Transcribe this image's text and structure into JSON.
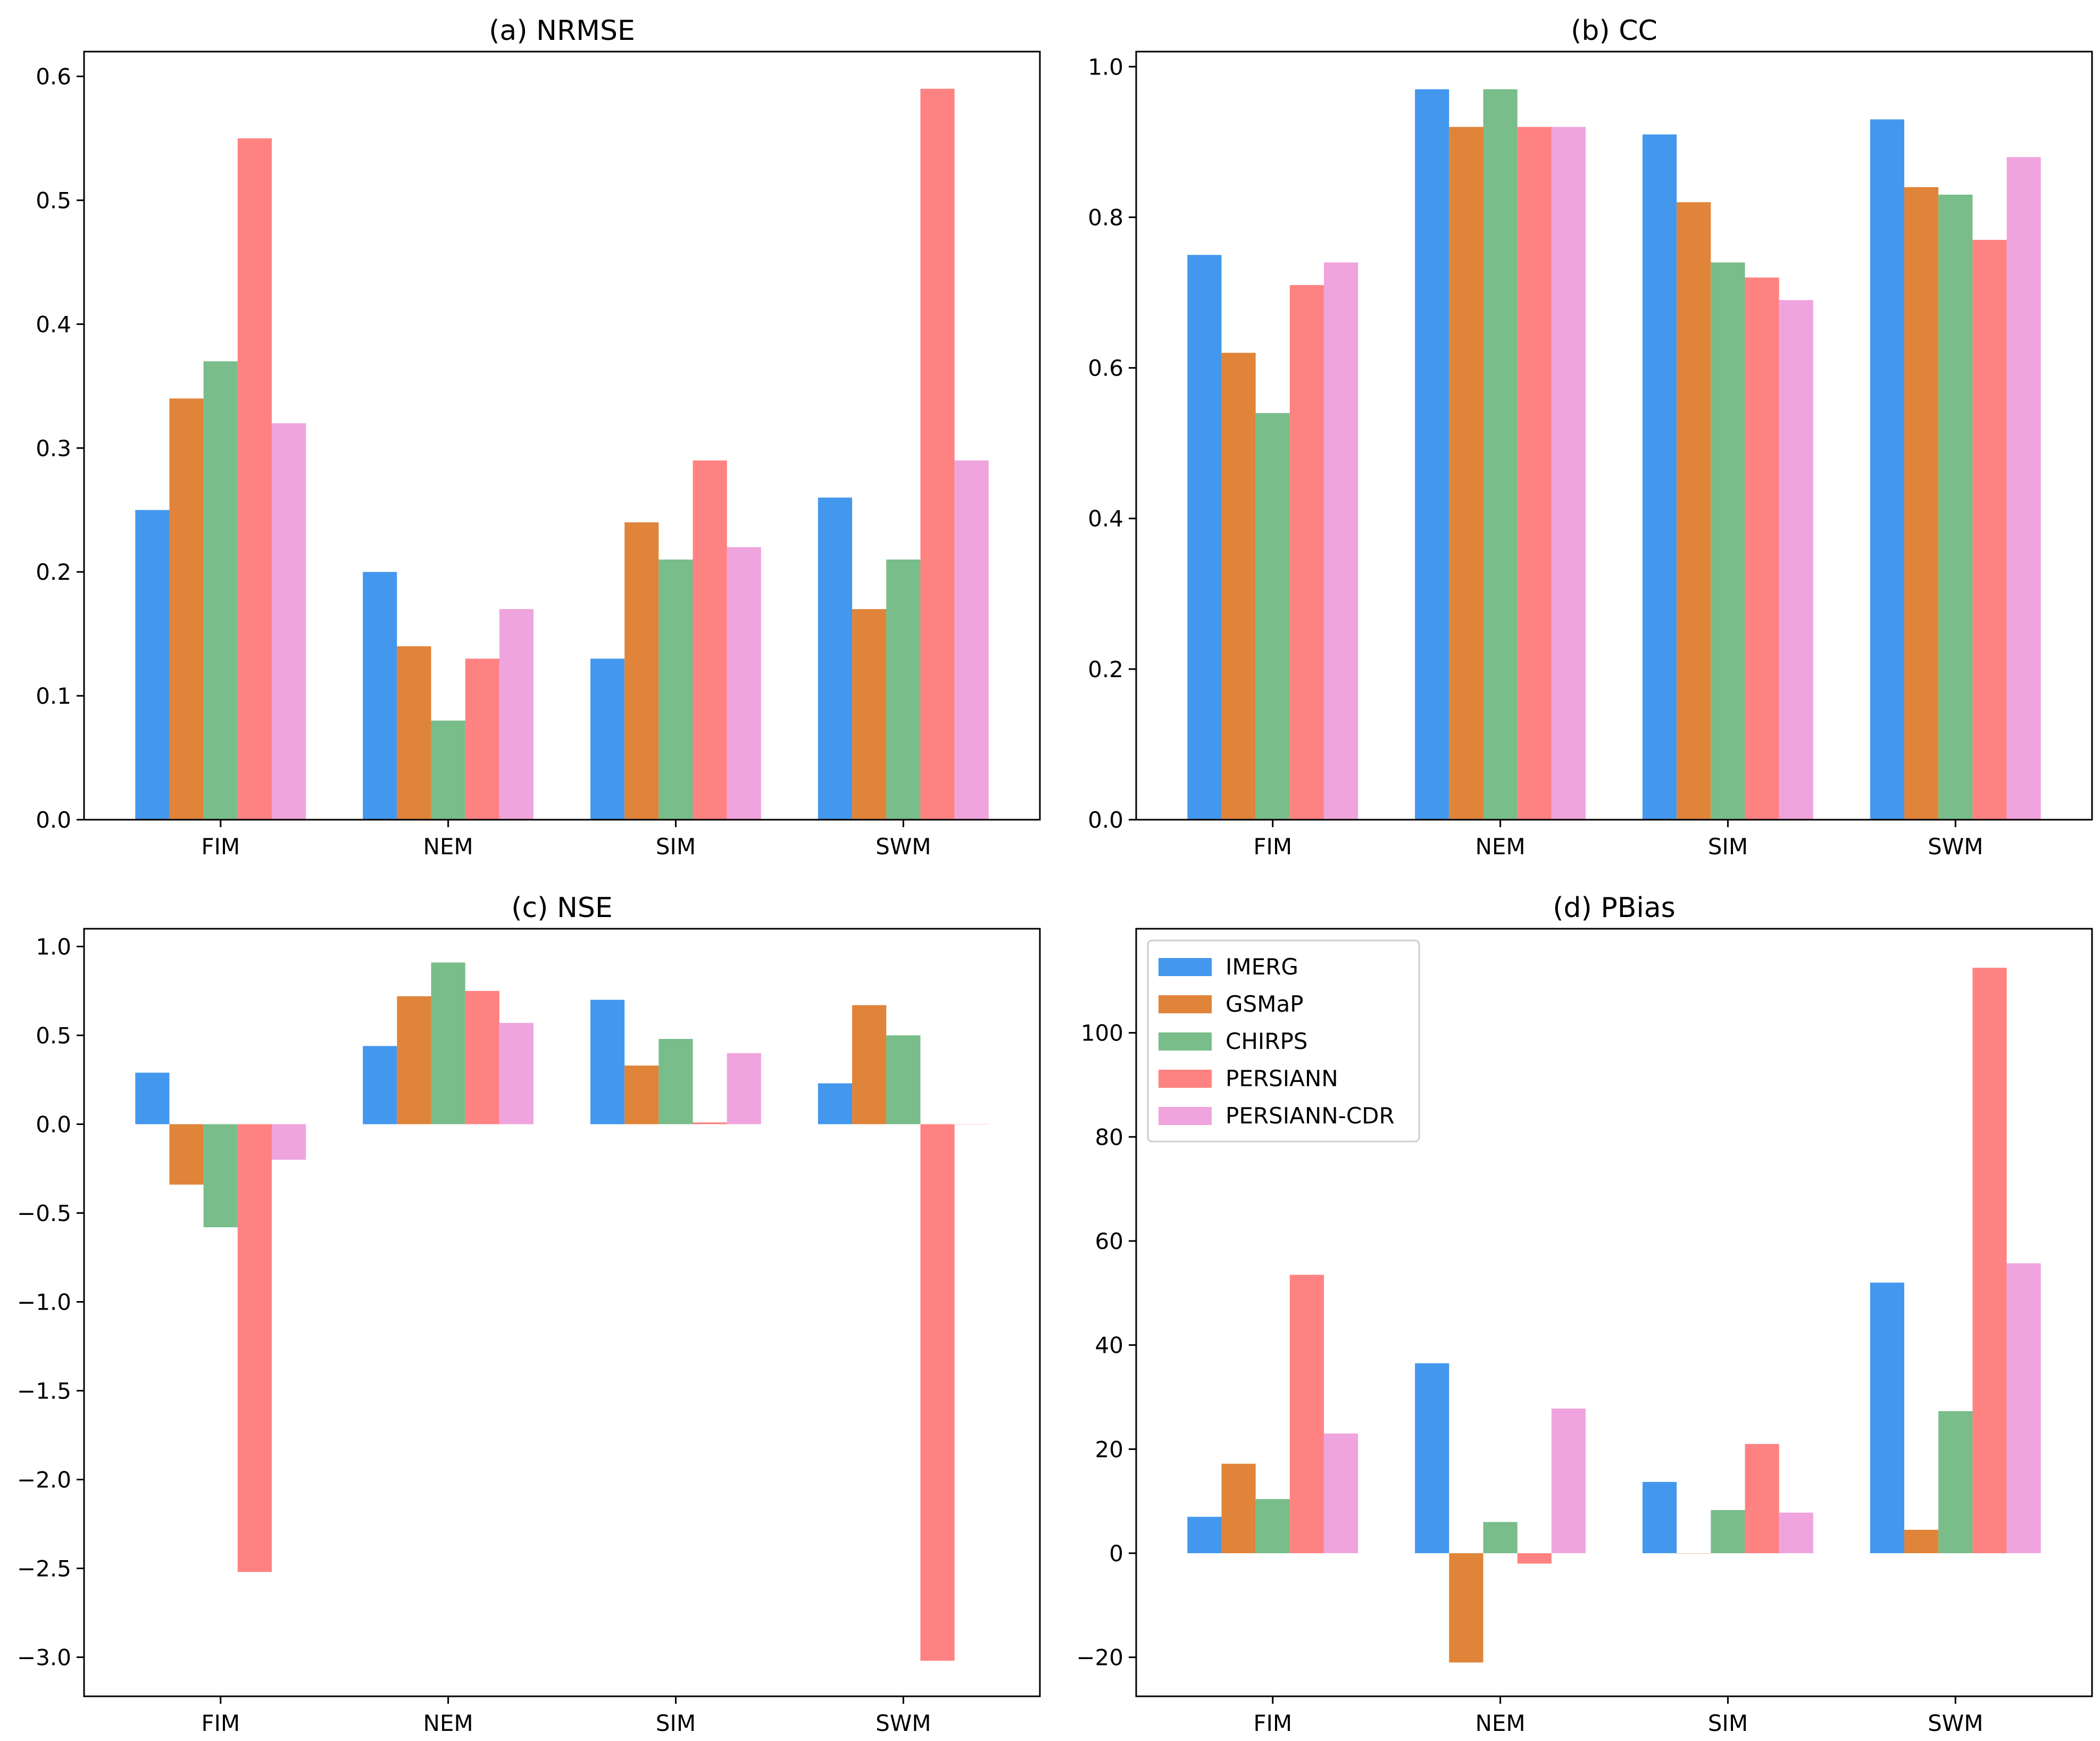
{
  "colors": {
    "IMERG": "#4398ee",
    "GSMaP": "#e0843a",
    "CHIRPS": "#78bd8a",
    "PERSIANN": "#ff8282",
    "PERSIANN-CDR": "#f0a4de"
  },
  "chart_data": [
    {
      "type": "bar",
      "title": "(a) NRMSE",
      "categories": [
        "FIM",
        "NEM",
        "SIM",
        "SWM"
      ],
      "ylim": [
        0,
        0.62
      ],
      "yticks": [
        0.0,
        0.1,
        0.2,
        0.3,
        0.4,
        0.5,
        0.6
      ],
      "ytick_labels": [
        "0.0",
        "0.1",
        "0.2",
        "0.3",
        "0.4",
        "0.5",
        "0.6"
      ],
      "legend": false,
      "series": [
        {
          "name": "IMERG",
          "values": [
            0.25,
            0.2,
            0.13,
            0.26
          ]
        },
        {
          "name": "GSMaP",
          "values": [
            0.34,
            0.14,
            0.24,
            0.17
          ]
        },
        {
          "name": "CHIRPS",
          "values": [
            0.37,
            0.08,
            0.21,
            0.21
          ]
        },
        {
          "name": "PERSIANN",
          "values": [
            0.55,
            0.13,
            0.29,
            0.59
          ]
        },
        {
          "name": "PERSIANN-CDR",
          "values": [
            0.32,
            0.17,
            0.22,
            0.29
          ]
        }
      ]
    },
    {
      "type": "bar",
      "title": "(b) CC",
      "categories": [
        "FIM",
        "NEM",
        "SIM",
        "SWM"
      ],
      "ylim": [
        0,
        1.02
      ],
      "yticks": [
        0.0,
        0.2,
        0.4,
        0.6,
        0.8,
        1.0
      ],
      "ytick_labels": [
        "0.0",
        "0.2",
        "0.4",
        "0.6",
        "0.8",
        "1.0"
      ],
      "legend": false,
      "series": [
        {
          "name": "IMERG",
          "values": [
            0.75,
            0.97,
            0.91,
            0.93
          ]
        },
        {
          "name": "GSMaP",
          "values": [
            0.62,
            0.92,
            0.82,
            0.84
          ]
        },
        {
          "name": "CHIRPS",
          "values": [
            0.54,
            0.97,
            0.74,
            0.83
          ]
        },
        {
          "name": "PERSIANN",
          "values": [
            0.71,
            0.92,
            0.72,
            0.77
          ]
        },
        {
          "name": "PERSIANN-CDR",
          "values": [
            0.74,
            0.92,
            0.69,
            0.88
          ]
        }
      ]
    },
    {
      "type": "bar",
      "title": "(c) NSE",
      "categories": [
        "FIM",
        "NEM",
        "SIM",
        "SWM"
      ],
      "ylim": [
        -3.22,
        1.1
      ],
      "yticks": [
        -3.0,
        -2.5,
        -2.0,
        -1.5,
        -1.0,
        -0.5,
        0.0,
        0.5,
        1.0
      ],
      "ytick_labels": [
        "−3.0",
        "−2.5",
        "−2.0",
        "−1.5",
        "−1.0",
        "−0.5",
        "0.0",
        "0.5",
        "1.0"
      ],
      "legend": false,
      "series": [
        {
          "name": "IMERG",
          "values": [
            0.29,
            0.44,
            0.7,
            0.23
          ]
        },
        {
          "name": "GSMaP",
          "values": [
            -0.34,
            0.72,
            0.33,
            0.67
          ]
        },
        {
          "name": "CHIRPS",
          "values": [
            -0.58,
            0.91,
            0.48,
            0.5
          ]
        },
        {
          "name": "PERSIANN",
          "values": [
            -2.52,
            0.75,
            0.01,
            -3.02
          ]
        },
        {
          "name": "PERSIANN-CDR",
          "values": [
            -0.2,
            0.57,
            0.4,
            0.0
          ]
        }
      ]
    },
    {
      "type": "bar",
      "title": "(d) PBias",
      "categories": [
        "FIM",
        "NEM",
        "SIM",
        "SWM"
      ],
      "ylim": [
        -27.5,
        120
      ],
      "yticks": [
        -20,
        0,
        20,
        40,
        60,
        80,
        100
      ],
      "ytick_labels": [
        "−20",
        "0",
        "20",
        "40",
        "60",
        "80",
        "100"
      ],
      "legend": true,
      "legend_position": "upper-left",
      "series": [
        {
          "name": "IMERG",
          "values": [
            7.0,
            36.5,
            13.7,
            52.0
          ]
        },
        {
          "name": "GSMaP",
          "values": [
            17.2,
            -21.0,
            0.0,
            4.5
          ]
        },
        {
          "name": "CHIRPS",
          "values": [
            10.4,
            6.0,
            8.3,
            27.3
          ]
        },
        {
          "name": "PERSIANN",
          "values": [
            53.5,
            -2.0,
            21.0,
            112.5
          ]
        },
        {
          "name": "PERSIANN-CDR",
          "values": [
            23.0,
            27.8,
            7.8,
            55.7
          ]
        }
      ]
    }
  ]
}
